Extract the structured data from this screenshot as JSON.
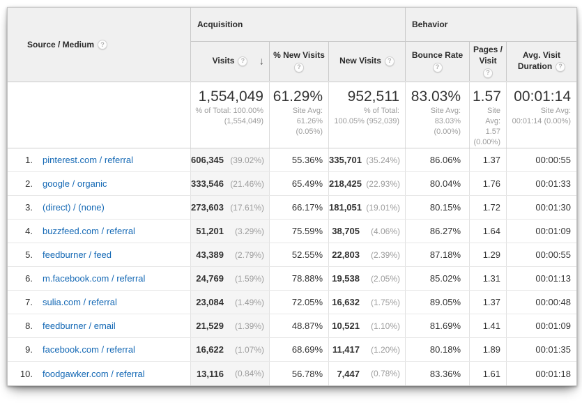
{
  "icons": {
    "help": "?",
    "sort_desc": "↓"
  },
  "colors": {
    "link_blue": "#1569b5",
    "header_bg": "#f0f0f0",
    "sorted_column_bg": "#f5f5f5"
  },
  "table": {
    "dimension": {
      "label": "Source / Medium"
    },
    "groups": {
      "acquisition": "Acquisition",
      "behavior": "Behavior"
    },
    "columns": {
      "visits": "Visits",
      "new_visits_pct": "% New Visits",
      "new_visits": "New Visits",
      "bounce_rate": "Bounce Rate",
      "pages_visit": "Pages / Visit",
      "avg_duration": "Avg. Visit Duration"
    },
    "sort": {
      "column": "visits",
      "direction": "descending"
    },
    "summary": {
      "visits": {
        "value": "1,554,049",
        "sub": "% of Total: 100.00% (1,554,049)"
      },
      "new_visits_pct": {
        "value": "61.29%",
        "sub": "Site Avg: 61.26% (0.05%)"
      },
      "new_visits": {
        "value": "952,511",
        "sub": "% of Total: 100.05% (952,039)"
      },
      "bounce_rate": {
        "value": "83.03%",
        "sub": "Site Avg: 83.03% (0.00%)"
      },
      "pages_visit": {
        "value": "1.57",
        "sub": "Site Avg: 1.57 (0.00%)"
      },
      "avg_duration": {
        "value": "00:01:14",
        "sub": "Site Avg: 00:01:14 (0.00%)"
      }
    },
    "rows": [
      {
        "rank": "1.",
        "source": "pinterest.com / referral",
        "visits": "606,345",
        "visits_pct": "(39.02%)",
        "new_visits_pct": "55.36%",
        "new_visits": "335,701",
        "new_visits_share": "(35.24%)",
        "bounce_rate": "86.06%",
        "pages_visit": "1.37",
        "avg_duration": "00:00:55"
      },
      {
        "rank": "2.",
        "source": "google / organic",
        "visits": "333,546",
        "visits_pct": "(21.46%)",
        "new_visits_pct": "65.49%",
        "new_visits": "218,425",
        "new_visits_share": "(22.93%)",
        "bounce_rate": "80.04%",
        "pages_visit": "1.76",
        "avg_duration": "00:01:33"
      },
      {
        "rank": "3.",
        "source": "(direct) / (none)",
        "visits": "273,603",
        "visits_pct": "(17.61%)",
        "new_visits_pct": "66.17%",
        "new_visits": "181,051",
        "new_visits_share": "(19.01%)",
        "bounce_rate": "80.15%",
        "pages_visit": "1.72",
        "avg_duration": "00:01:30"
      },
      {
        "rank": "4.",
        "source": "buzzfeed.com / referral",
        "visits": "51,201",
        "visits_pct": "(3.29%)",
        "new_visits_pct": "75.59%",
        "new_visits": "38,705",
        "new_visits_share": "(4.06%)",
        "bounce_rate": "86.27%",
        "pages_visit": "1.64",
        "avg_duration": "00:01:09"
      },
      {
        "rank": "5.",
        "source": "feedburner / feed",
        "visits": "43,389",
        "visits_pct": "(2.79%)",
        "new_visits_pct": "52.55%",
        "new_visits": "22,803",
        "new_visits_share": "(2.39%)",
        "bounce_rate": "87.18%",
        "pages_visit": "1.29",
        "avg_duration": "00:00:55"
      },
      {
        "rank": "6.",
        "source": "m.facebook.com / referral",
        "visits": "24,769",
        "visits_pct": "(1.59%)",
        "new_visits_pct": "78.88%",
        "new_visits": "19,538",
        "new_visits_share": "(2.05%)",
        "bounce_rate": "85.02%",
        "pages_visit": "1.31",
        "avg_duration": "00:01:13"
      },
      {
        "rank": "7.",
        "source": "sulia.com / referral",
        "visits": "23,084",
        "visits_pct": "(1.49%)",
        "new_visits_pct": "72.05%",
        "new_visits": "16,632",
        "new_visits_share": "(1.75%)",
        "bounce_rate": "89.05%",
        "pages_visit": "1.37",
        "avg_duration": "00:00:48"
      },
      {
        "rank": "8.",
        "source": "feedburner / email",
        "visits": "21,529",
        "visits_pct": "(1.39%)",
        "new_visits_pct": "48.87%",
        "new_visits": "10,521",
        "new_visits_share": "(1.10%)",
        "bounce_rate": "81.69%",
        "pages_visit": "1.41",
        "avg_duration": "00:01:09"
      },
      {
        "rank": "9.",
        "source": "facebook.com / referral",
        "visits": "16,622",
        "visits_pct": "(1.07%)",
        "new_visits_pct": "68.69%",
        "new_visits": "11,417",
        "new_visits_share": "(1.20%)",
        "bounce_rate": "80.18%",
        "pages_visit": "1.89",
        "avg_duration": "00:01:35"
      },
      {
        "rank": "10.",
        "source": "foodgawker.com / referral",
        "visits": "13,116",
        "visits_pct": "(0.84%)",
        "new_visits_pct": "56.78%",
        "new_visits": "7,447",
        "new_visits_share": "(0.78%)",
        "bounce_rate": "83.36%",
        "pages_visit": "1.61",
        "avg_duration": "00:01:18"
      }
    ]
  }
}
